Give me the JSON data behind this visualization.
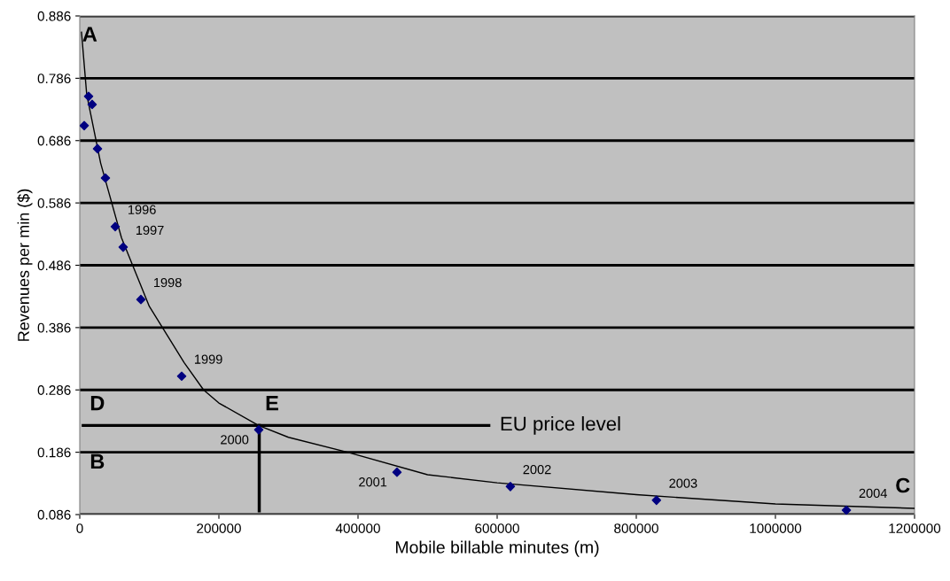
{
  "chart_data": {
    "type": "scatter",
    "xlabel": "Mobile billable minutes (m)",
    "ylabel": "Revenues per min ($)",
    "xlim": [
      0,
      1200000
    ],
    "xticks": [
      0,
      200000,
      400000,
      600000,
      800000,
      1000000,
      1200000
    ],
    "ylim": [
      0.086,
      0.886
    ],
    "yticks": [
      0.086,
      0.186,
      0.286,
      0.386,
      0.486,
      0.586,
      0.686,
      0.786,
      0.886
    ],
    "grid": "y",
    "marker": "diamond",
    "series": [
      {
        "color": "#000080",
        "x": [
          6400,
          12700,
          17800,
          25500,
          36900,
          51000,
          62400,
          87900,
          146500,
          257300,
          456000,
          619000,
          829000,
          1102000
        ],
        "values": [
          0.71,
          0.757,
          0.744,
          0.673,
          0.626,
          0.548,
          0.515,
          0.431,
          0.308,
          0.222,
          0.154,
          0.131,
          0.109,
          0.093
        ]
      },
      {
        "type": "line",
        "marker": "none",
        "color": "#000000",
        "x": [
          2500,
          10000,
          30000,
          60000,
          100000,
          150000,
          178000,
          200000,
          257000,
          300000,
          385000,
          500000,
          600000,
          800000,
          1000000,
          1200000
        ],
        "values": [
          0.86,
          0.76,
          0.65,
          0.53,
          0.42,
          0.33,
          0.286,
          0.265,
          0.229,
          0.21,
          0.186,
          0.15,
          0.137,
          0.118,
          0.103,
          0.096
        ]
      },
      {
        "type": "line",
        "marker": "none",
        "name": "EU price level",
        "color": "#000000",
        "x": [
          5000,
          588000
        ],
        "values": [
          0.229,
          0.229
        ]
      },
      {
        "type": "line",
        "marker": "none",
        "color": "#000000",
        "x": [
          258000,
          258000
        ],
        "values": [
          0.229,
          0.092
        ]
      }
    ],
    "annotations": [
      "A",
      "B",
      "C",
      "D",
      "E",
      {
        "text": "1996",
        "x": 51000,
        "y": 0.548
      },
      {
        "text": "1997",
        "x": 62400,
        "y": 0.515
      },
      {
        "text": "1998",
        "x": 87900,
        "y": 0.431
      },
      {
        "text": "1999",
        "x": 146500,
        "y": 0.308
      },
      {
        "text": "2000",
        "x": 257300,
        "y": 0.222
      },
      {
        "text": "2001",
        "x": 456000,
        "y": 0.154
      },
      {
        "text": "2002",
        "x": 619000,
        "y": 0.131
      },
      {
        "text": "2003",
        "x": 829000,
        "y": 0.109
      },
      {
        "text": "2004",
        "x": 1102000,
        "y": 0.093
      }
    ]
  }
}
